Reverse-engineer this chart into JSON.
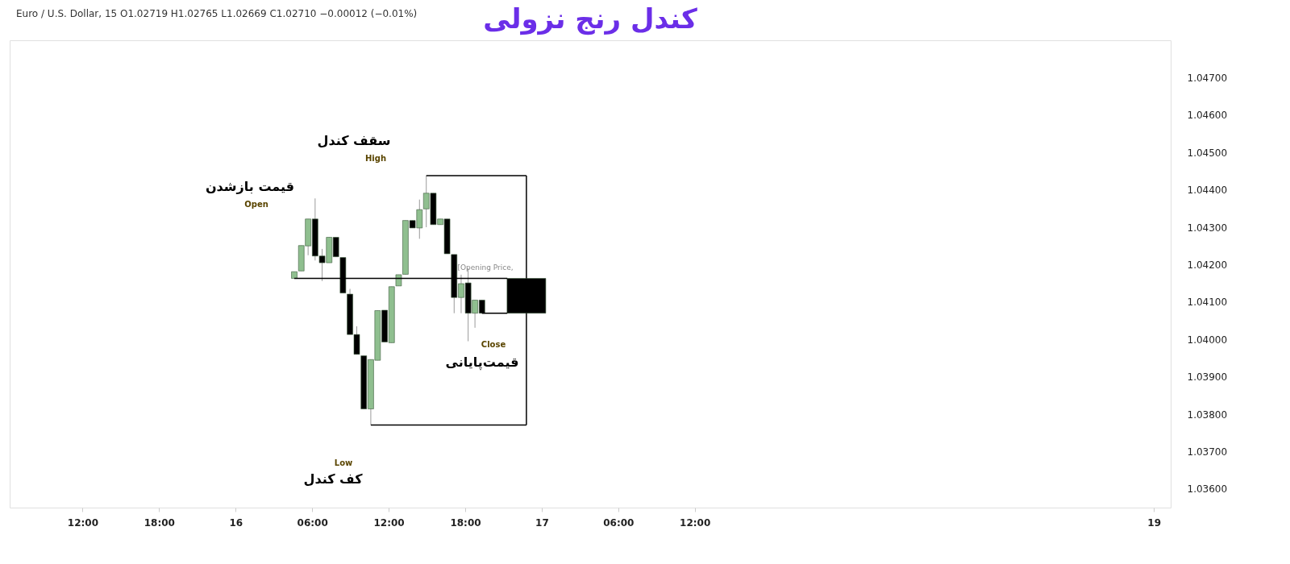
{
  "chart_data": {
    "type": "candlestick",
    "title": "کندل رنج نزولی",
    "annotations": [
      "Euro / U.S. Dollar, 15  O1.02719  H1.02765  L1.02669  C1.02710  −0.00012 (−0.01%)",
      "قیمت بازشدن",
      "Open",
      "سقف کندل",
      "High",
      "کف کندل",
      "Low",
      "قیمت‌پایانی",
      "Close",
      "[Opening Price,"
    ],
    "series": [
      {
        "type": "candlestick",
        "x": [
          "--01-16T04:36",
          "--01-16T05:09",
          "--01-16T05:41",
          "--01-16T06:14",
          "--01-16T06:47",
          "--01-16T07:20",
          "--01-16T07:52",
          "--01-16T08:25",
          "--01-16T08:58",
          "--01-16T09:30",
          "--01-16T10:03",
          "--01-16T10:36",
          "--01-16T11:08",
          "--01-16T11:41",
          "--01-16T12:14",
          "--01-16T12:47",
          "--01-16T13:19",
          "--01-16T13:52",
          "--01-16T14:25",
          "--01-16T14:57",
          "--01-16T15:30",
          "--01-16T16:03",
          "--01-16T16:35",
          "--01-16T17:08",
          "--01-16T17:41",
          "--01-16T18:14",
          "--01-16T18:46",
          "--01-16T19:19"
        ],
        "ohlc": [
          [
            1.04163,
            1.04181,
            1.04163,
            1.04181
          ],
          [
            1.04183,
            1.04251,
            1.04183,
            1.04251
          ],
          [
            1.0425,
            1.04322,
            1.04225,
            1.04322
          ],
          [
            1.04322,
            1.04377,
            1.04211,
            1.04223
          ],
          [
            1.04223,
            1.04242,
            1.04156,
            1.04205
          ],
          [
            1.04205,
            1.04273,
            1.04205,
            1.04273
          ],
          [
            1.04273,
            1.04273,
            1.04221,
            1.04221
          ],
          [
            1.04219,
            1.04219,
            1.04124,
            1.04124
          ],
          [
            1.04121,
            1.04135,
            1.04013,
            1.04013
          ],
          [
            1.04013,
            1.04035,
            1.0396,
            1.0396
          ],
          [
            1.03956,
            1.03956,
            1.03814,
            1.03814
          ],
          [
            1.03814,
            1.03946,
            1.03771,
            1.03946
          ],
          [
            1.03944,
            1.04077,
            1.03944,
            1.04077
          ],
          [
            1.04078,
            1.04078,
            1.03993,
            1.03993
          ],
          [
            1.03991,
            1.04141,
            1.03991,
            1.04141
          ],
          [
            1.04143,
            1.04173,
            1.04143,
            1.04173
          ],
          [
            1.04174,
            1.04318,
            1.04174,
            1.04318
          ],
          [
            1.04318,
            1.04318,
            1.04298,
            1.04298
          ],
          [
            1.04298,
            1.04374,
            1.04269,
            1.04347
          ],
          [
            1.04349,
            1.04438,
            1.043,
            1.04391
          ],
          [
            1.04391,
            1.04391,
            1.04307,
            1.04307
          ],
          [
            1.04307,
            1.04322,
            1.04307,
            1.04322
          ],
          [
            1.04322,
            1.04322,
            1.04229,
            1.04229
          ],
          [
            1.04227,
            1.04227,
            1.0407,
            1.04112
          ],
          [
            1.04112,
            1.04173,
            1.0407,
            1.04149
          ],
          [
            1.04151,
            1.0419,
            1.03995,
            1.0407
          ],
          [
            1.0407,
            1.04105,
            1.04031,
            1.04105
          ],
          [
            1.04105,
            1.04105,
            1.0407,
            1.0407
          ]
        ],
        "colors": [
          "#8fbf8f",
          "#8fbf8f",
          "#8fbf8f",
          "#000000",
          "#000000",
          "#8fbf8f",
          "#000000",
          "#000000",
          "#000000",
          "#000000",
          "#000000",
          "#8fbf8f",
          "#8fbf8f",
          "#000000",
          "#8fbf8f",
          "#8fbf8f",
          "#8fbf8f",
          "#000000",
          "#8fbf8f",
          "#8fbf8f",
          "#000000",
          "#8fbf8f",
          "#000000",
          "#000000",
          "#8fbf8f",
          "#000000",
          "#8fbf8f",
          "#000000"
        ]
      },
      {
        "type": "candlestick",
        "x": [
          "--01-16T22:48"
        ],
        "ohlc": [
          [
            1.04163,
            1.04438,
            1.03771,
            1.0407
          ]
        ],
        "color": "#000000"
      },
      {
        "type": "line",
        "x": [
          "--01-16T04:36",
          "--01-16T21:18"
        ],
        "values": [
          1.04163,
          1.04163
        ],
        "color": "#000000"
      },
      {
        "type": "line",
        "x": [
          "--01-16T14:57",
          "--01-16T22:48"
        ],
        "values": [
          1.04438,
          1.04438
        ],
        "color": "#000000"
      },
      {
        "type": "line",
        "x": [
          "--01-16T10:36",
          "--01-16T22:48"
        ],
        "values": [
          1.03771,
          1.03771
        ],
        "color": "#000000"
      },
      {
        "type": "line",
        "x": [
          "--01-16T19:19",
          "--01-16T21:18"
        ],
        "values": [
          1.0407,
          1.0407
        ],
        "color": "#000000"
      }
    ],
    "xlim": [
      "--01-15T06:36",
      "--01-19T01:00"
    ],
    "xticks": [
      {
        "value": "--01-15T12:00",
        "label": "12:00"
      },
      {
        "value": "--01-15T18:00",
        "label": "18:00"
      },
      {
        "value": "--01-16T00:00",
        "label": "16"
      },
      {
        "value": "--01-16T06:00",
        "label": "06:00"
      },
      {
        "value": "--01-16T12:00",
        "label": "12:00"
      },
      {
        "value": "--01-16T18:00",
        "label": "18:00"
      },
      {
        "value": "--01-17T00:00",
        "label": "17"
      },
      {
        "value": "--01-17T06:00",
        "label": "06:00"
      },
      {
        "value": "--01-17T12:00",
        "label": "12:00"
      },
      {
        "value": "--01-19T00:00",
        "label": "19"
      }
    ],
    "ylim": [
      1.0355,
      1.048
    ],
    "yticks": [
      {
        "value": 1.036,
        "label": "1.03600"
      },
      {
        "value": 1.037,
        "label": "1.03700"
      },
      {
        "value": 1.038,
        "label": "1.03800"
      },
      {
        "value": 1.039,
        "label": "1.03900"
      },
      {
        "value": 1.04,
        "label": "1.04000"
      },
      {
        "value": 1.041,
        "label": "1.04100"
      },
      {
        "value": 1.042,
        "label": "1.04200"
      },
      {
        "value": 1.043,
        "label": "1.04300"
      },
      {
        "value": 1.044,
        "label": "1.04400"
      },
      {
        "value": 1.045,
        "label": "1.04500"
      },
      {
        "value": 1.046,
        "label": "1.04600"
      },
      {
        "value": 1.047,
        "label": "1.04700"
      }
    ]
  }
}
